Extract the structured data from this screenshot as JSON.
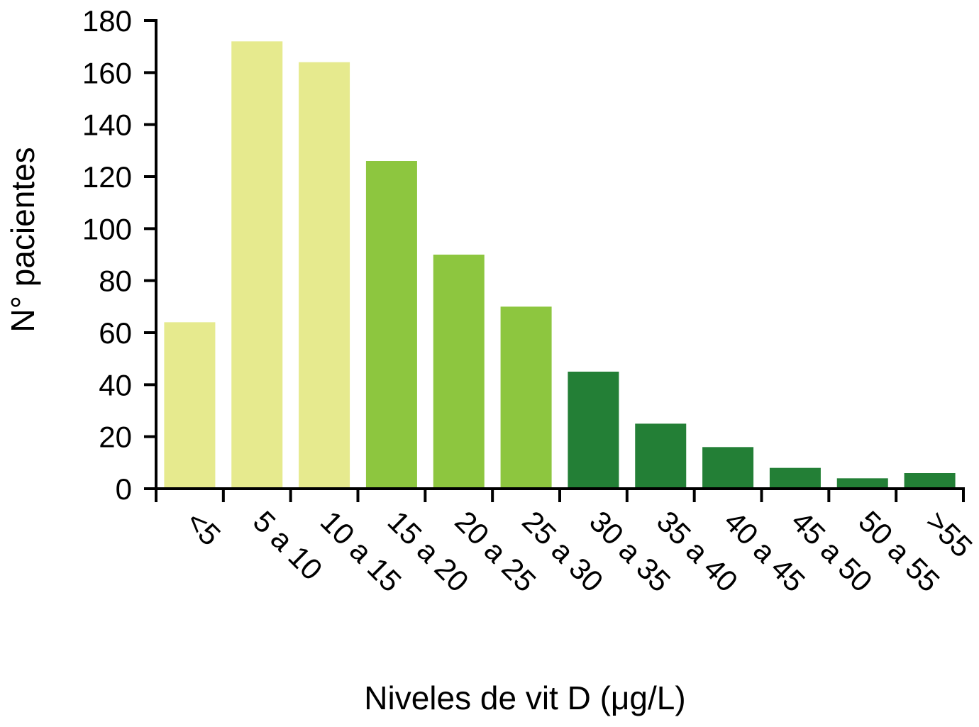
{
  "chart_data": {
    "type": "bar",
    "title": "",
    "xlabel": "Niveles de vit D (μg/L)",
    "ylabel": "N° pacientes",
    "ylim": [
      0,
      180
    ],
    "yticks": [
      0,
      20,
      40,
      60,
      80,
      100,
      120,
      140,
      160,
      180
    ],
    "categories": [
      "<5",
      "5 a 10",
      "10 a 15",
      "15 a 20",
      "20 a 25",
      "25 a 30",
      "30 a 35",
      "35 a 40",
      "40 a 45",
      "45 a 50",
      "50 a 55",
      ">55"
    ],
    "values": [
      64,
      172,
      164,
      126,
      90,
      70,
      45,
      25,
      16,
      8,
      4,
      6
    ],
    "bar_colors": [
      "#e6ea8e",
      "#e6ea8e",
      "#e6ea8e",
      "#8dc63f",
      "#8dc63f",
      "#8dc63f",
      "#237f36",
      "#237f36",
      "#237f36",
      "#237f36",
      "#237f36",
      "#237f36"
    ],
    "grid": false,
    "legend": "none"
  }
}
